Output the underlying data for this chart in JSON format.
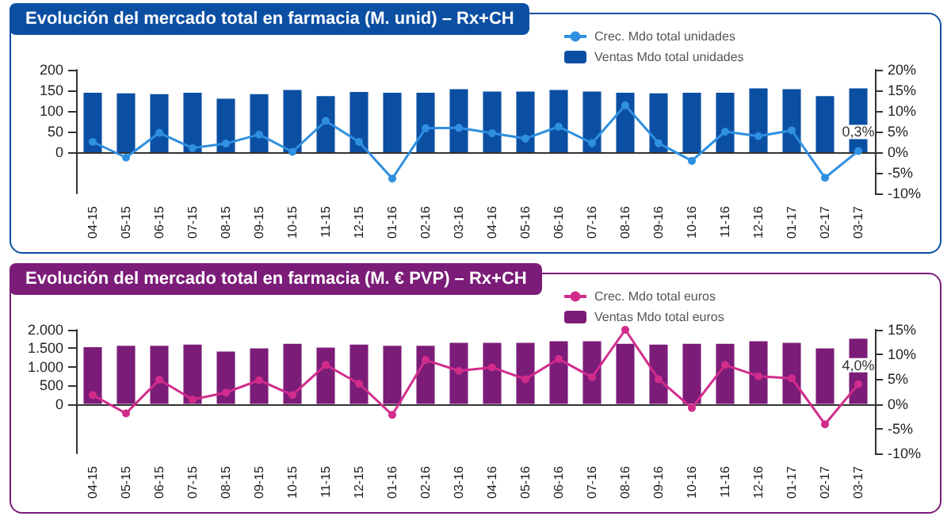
{
  "chart_data": [
    {
      "type": "bar",
      "title": "Evolución del mercado total en farmacia (M. unid) – Rx+CH",
      "legend": "top right",
      "marker": "circle",
      "categories": [
        "04-15",
        "05-15",
        "06-15",
        "07-15",
        "08-15",
        "09-15",
        "10-15",
        "11-15",
        "12-15",
        "01-16",
        "02-16",
        "03-16",
        "04-16",
        "05-16",
        "06-16",
        "07-16",
        "08-16",
        "09-16",
        "10-16",
        "11-16",
        "12-16",
        "01-17",
        "02-17",
        "03-17"
      ],
      "ylim": [
        -100,
        200
      ],
      "yticks": [
        0,
        50,
        100,
        150,
        200
      ],
      "y2lim": [
        -10,
        20
      ],
      "y2ticks": [
        {
          "value": -10,
          "label": "-10%"
        },
        {
          "value": -5,
          "label": "-5%"
        },
        {
          "value": 0,
          "label": "0%"
        },
        {
          "value": 5,
          "label": "5%"
        },
        {
          "value": 10,
          "label": "10%"
        },
        {
          "value": 15,
          "label": "15%"
        },
        {
          "value": 20,
          "label": "20%"
        }
      ],
      "series": [
        {
          "name": "Crec. Mdo total unidades",
          "type": "line",
          "axis": "y2",
          "color": "#2f8fe0",
          "values": [
            2.5,
            -1.3,
            4.7,
            1.0,
            2.1,
            4.3,
            0.1,
            7.6,
            2.5,
            -6.4,
            5.8,
            5.9,
            4.6,
            3.3,
            6.2,
            2.2,
            11.4,
            2.2,
            -2.1,
            5.0,
            3.9,
            5.3,
            -6.2,
            0.3
          ],
          "value_labels": [
            null,
            null,
            null,
            null,
            null,
            null,
            null,
            null,
            null,
            null,
            null,
            null,
            null,
            null,
            null,
            null,
            null,
            null,
            null,
            null,
            null,
            null,
            null,
            "0,3%"
          ]
        },
        {
          "name": "Ventas Mdo total unidades",
          "axis": "y",
          "color": "#0b4fa3",
          "values": [
            144,
            143,
            141,
            144,
            130,
            141,
            151,
            136,
            146,
            144,
            144,
            153,
            147,
            147,
            151,
            147,
            144,
            143,
            144,
            144,
            155,
            153,
            136,
            155
          ]
        }
      ]
    },
    {
      "type": "bar",
      "title": "Evolución del mercado total en farmacia (M. € PVP) – Rx+CH",
      "legend": "top right",
      "marker": "circle",
      "categories": [
        "04-15",
        "05-15",
        "06-15",
        "07-15",
        "08-15",
        "09-15",
        "10-15",
        "11-15",
        "12-15",
        "01-16",
        "02-16",
        "03-16",
        "04-16",
        "05-16",
        "06-16",
        "07-16",
        "08-16",
        "09-16",
        "10-16",
        "11-16",
        "12-16",
        "01-17",
        "02-17",
        "03-17"
      ],
      "ylim": [
        -1333,
        2000
      ],
      "yticks": [
        0,
        500,
        {
          "value": 1000,
          "label": "1.000"
        },
        {
          "value": 1500,
          "label": "1.500"
        },
        {
          "value": 2000,
          "label": "2.000"
        }
      ],
      "y2lim": [
        -10,
        15
      ],
      "y2ticks": [
        {
          "value": -10,
          "label": "-10%"
        },
        {
          "value": -5,
          "label": "-5%"
        },
        {
          "value": 0,
          "label": "0%"
        },
        {
          "value": 5,
          "label": "5%"
        },
        {
          "value": 10,
          "label": "10%"
        },
        {
          "value": 15,
          "label": "15%"
        }
      ],
      "series": [
        {
          "name": "Crec. Mdo total euros",
          "type": "line",
          "axis": "y2",
          "color": "#d12c8c",
          "values": [
            1.8,
            -1.9,
            4.9,
            0.9,
            2.3,
            4.8,
            1.8,
            7.9,
            4.1,
            -2.2,
            8.9,
            6.7,
            7.4,
            5.0,
            9.1,
            5.4,
            15.0,
            5.0,
            -0.8,
            7.9,
            5.6,
            5.2,
            -4.1,
            4.0
          ],
          "value_labels": [
            null,
            null,
            null,
            null,
            null,
            null,
            null,
            null,
            null,
            null,
            null,
            null,
            null,
            null,
            null,
            null,
            null,
            null,
            null,
            null,
            null,
            null,
            null,
            "4,0%"
          ]
        },
        {
          "name": "Ventas Mdo total euros",
          "axis": "y",
          "color": "#7b1c78",
          "values": [
            1530,
            1570,
            1570,
            1600,
            1410,
            1500,
            1620,
            1520,
            1600,
            1570,
            1570,
            1650,
            1650,
            1650,
            1690,
            1690,
            1620,
            1600,
            1620,
            1620,
            1690,
            1650,
            1500,
            1760
          ]
        }
      ]
    }
  ]
}
